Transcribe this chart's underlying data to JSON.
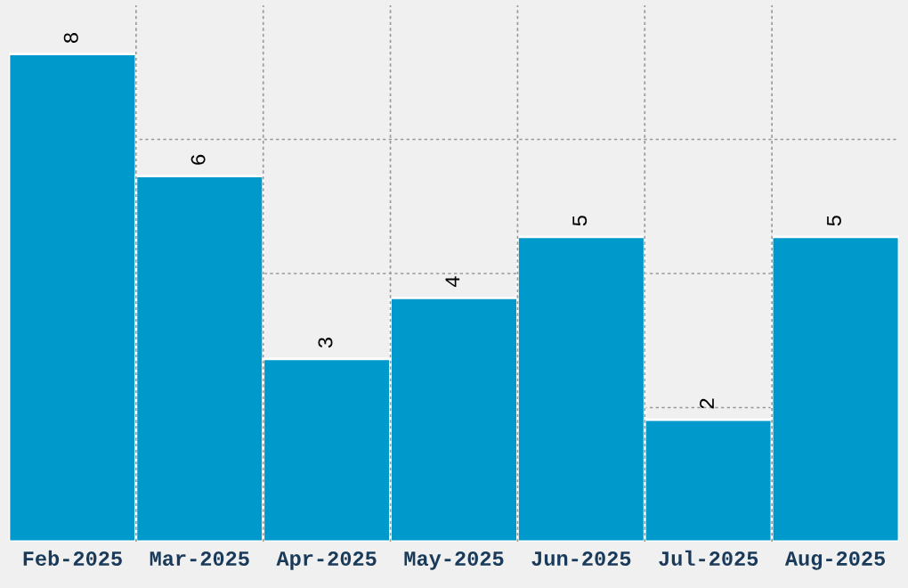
{
  "chart_data": {
    "type": "bar",
    "categories": [
      "Feb-2025",
      "Mar-2025",
      "Apr-2025",
      "May-2025",
      "Jun-2025",
      "Jul-2025",
      "Aug-2025"
    ],
    "values": [
      8,
      6,
      3,
      4,
      5,
      2,
      5
    ],
    "color": "#0099cc",
    "ylim": [
      0,
      8.8
    ],
    "yticks": [
      {
        "value": 2.2,
        "label": null
      },
      {
        "value": 4.4,
        "label": null
      },
      {
        "value": 6.6,
        "label": null
      }
    ],
    "tick_labels": "x",
    "grid": true,
    "data_labels": true
  }
}
